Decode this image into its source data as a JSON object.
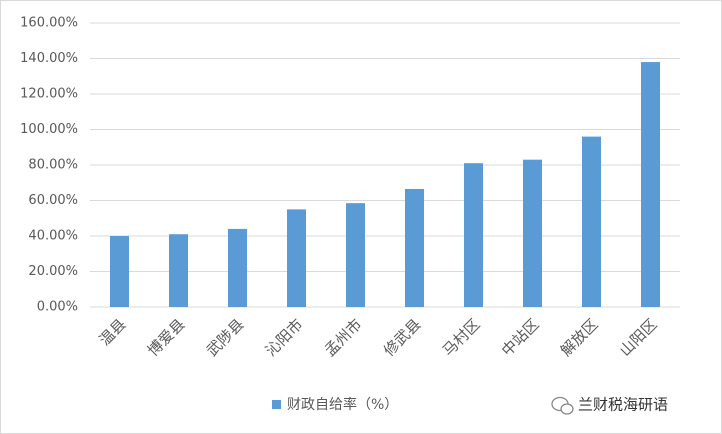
{
  "chart_data": {
    "type": "bar",
    "categories": [
      "温县",
      "博爱县",
      "武陟县",
      "沁阳市",
      "孟州市",
      "修武县",
      "马村区",
      "中站区",
      "解放区",
      "山阳区"
    ],
    "series": [
      {
        "name": "财政自给率（%）",
        "color": "#5b9bd5",
        "values": [
          40,
          41,
          44,
          55,
          58.5,
          66.5,
          81,
          83,
          96,
          138
        ]
      }
    ],
    "ylim": [
      0,
      160
    ],
    "yticks": [
      {
        "value": 0,
        "label": "0.00%"
      },
      {
        "value": 20,
        "label": "20.00%"
      },
      {
        "value": 40,
        "label": "40.00%"
      },
      {
        "value": 60,
        "label": "60.00%"
      },
      {
        "value": 80,
        "label": "80.00%"
      },
      {
        "value": 100,
        "label": "100.00%"
      },
      {
        "value": 120,
        "label": "120.00%"
      },
      {
        "value": 140,
        "label": "140.00%"
      },
      {
        "value": 160,
        "label": "160.00%"
      }
    ],
    "grid": true,
    "legend": "bottom",
    "watermark": "兰财税海研语"
  }
}
